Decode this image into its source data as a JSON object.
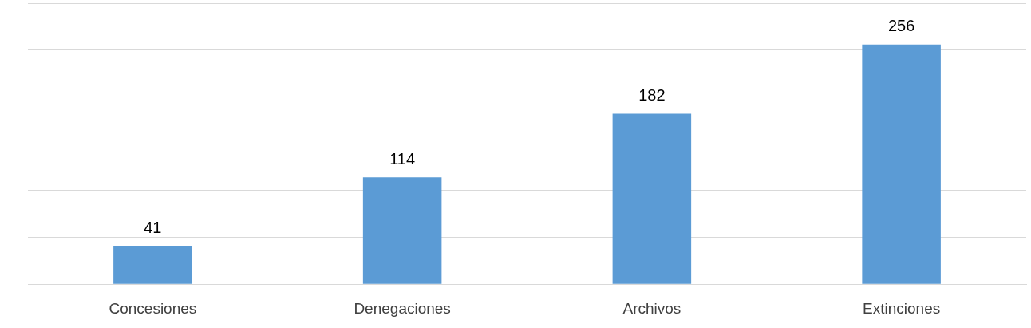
{
  "chart_data": {
    "type": "bar",
    "categories": [
      "Concesiones",
      "Denegaciones",
      "Archivos",
      "Extinciones"
    ],
    "values": [
      41,
      114,
      182,
      256
    ],
    "color": "#5b9bd5",
    "ylim": [
      0,
      300
    ],
    "yticks": [
      {
        "value": 0,
        "label": null
      },
      {
        "value": 50,
        "label": null
      },
      {
        "value": 100,
        "label": null
      },
      {
        "value": 150,
        "label": null
      },
      {
        "value": 200,
        "label": null
      },
      {
        "value": 250,
        "label": null
      },
      {
        "value": 300,
        "label": null
      }
    ],
    "grid": "y",
    "tick_labels": "x",
    "data_labels": true,
    "legend": false
  }
}
